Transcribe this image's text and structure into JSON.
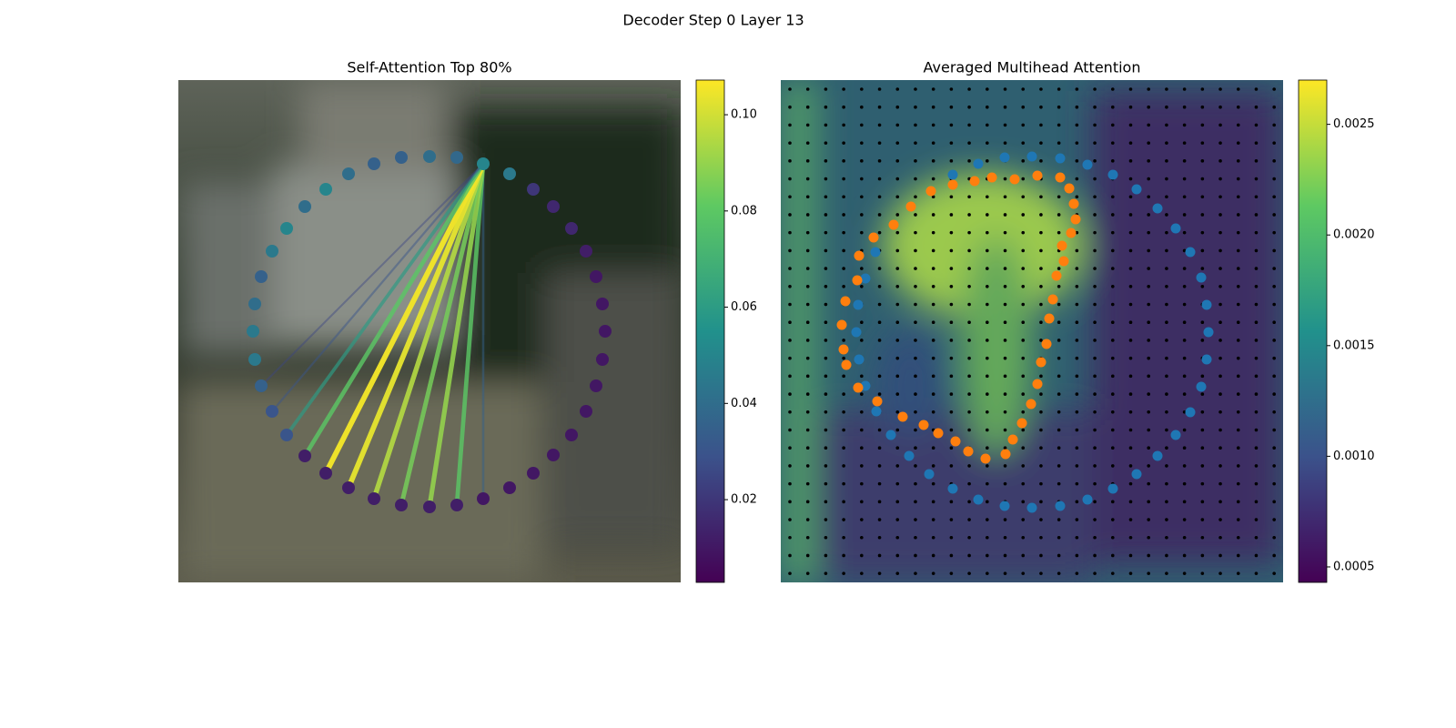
{
  "title": "Decoder Step 0 Layer 13",
  "chart_data": [
    {
      "type": "attention-ring",
      "title": "Self-Attention Top 80%",
      "xlim": [
        0,
        552
      ],
      "ylim": [
        552,
        0
      ],
      "x": [
        276,
        306,
        335,
        364,
        390,
        412,
        432,
        448,
        459,
        466,
        469,
        466,
        459,
        448,
        432,
        412,
        390,
        364,
        335,
        306,
        276,
        245,
        215,
        187,
        162,
        139,
        119,
        103,
        91,
        84,
        82,
        84,
        91,
        103,
        119,
        139,
        162,
        187,
        215,
        245
      ],
      "y": [
        84,
        85,
        92,
        103,
        120,
        139,
        163,
        188,
        216,
        246,
        276,
        307,
        336,
        364,
        390,
        412,
        432,
        448,
        460,
        467,
        469,
        467,
        460,
        448,
        432,
        413,
        390,
        364,
        336,
        307,
        276,
        246,
        216,
        188,
        163,
        139,
        120,
        103,
        92,
        85
      ],
      "values": [
        0.04,
        0.038,
        0.05,
        0.045,
        0.02,
        0.015,
        0.015,
        0.012,
        0.01,
        0.01,
        0.01,
        0.01,
        0.01,
        0.01,
        0.01,
        0.01,
        0.01,
        0.01,
        0.01,
        0.012,
        0.012,
        0.012,
        0.012,
        0.012,
        0.012,
        0.012,
        0.03,
        0.03,
        0.035,
        0.045,
        0.045,
        0.04,
        0.035,
        0.045,
        0.05,
        0.04,
        0.05,
        0.04,
        0.035,
        0.035
      ],
      "links": {
        "source": 2,
        "targets": [
          18,
          19,
          20,
          21,
          22,
          23,
          24,
          25,
          26,
          27,
          28
        ],
        "values": [
          0.035,
          0.08,
          0.09,
          0.085,
          0.095,
          0.103,
          0.105,
          0.08,
          0.06,
          0.03,
          0.025
        ]
      },
      "colorbar": {
        "ylim": [
          0.0028,
          0.1072
        ],
        "yticks": [
          0.02,
          0.04,
          0.06,
          0.08,
          {
            "value": 0.1,
            "label": "0.10"
          }
        ]
      }
    },
    {
      "type": "attention-map",
      "title": "Averaged Multihead Attention",
      "xlim": [
        0,
        552
      ],
      "ylim": [
        552,
        0
      ],
      "series": [
        {
          "color": "#1f77b4",
          "x": [
            104,
            93,
            85,
            83,
            86,
            93,
            105,
            121,
            141,
            163,
            189,
            217,
            246,
            276,
            307,
            337,
            365,
            391,
            414,
            434,
            450,
            462,
            468,
            470,
            468,
            462,
            450,
            434,
            414,
            391,
            365,
            337,
            307,
            276,
            246,
            217,
            189
          ],
          "y": [
            189,
            218,
            247,
            277,
            307,
            336,
            364,
            390,
            413,
            433,
            449,
            461,
            468,
            470,
            468,
            461,
            449,
            433,
            413,
            390,
            365,
            337,
            307,
            277,
            247,
            217,
            189,
            163,
            141,
            120,
            104,
            93,
            86,
            84,
            85,
            92,
            104
          ]
        },
        {
          "color": "#ff7f0e",
          "x": [
            165,
            189,
            213,
            232,
            257,
            282,
            307,
            317,
            322,
            324,
            319,
            309,
            311,
            303,
            299,
            295,
            292,
            286,
            282,
            275,
            265,
            255,
            247,
            225,
            206,
            192,
            173,
            157,
            134,
            106,
            85,
            72,
            69,
            67,
            71,
            84,
            86,
            102,
            124,
            143
          ],
          "y": [
            122,
            115,
            111,
            107,
            109,
            105,
            107,
            119,
            136,
            153,
            168,
            182,
            199,
            215,
            241,
            262,
            290,
            310,
            334,
            356,
            377,
            395,
            411,
            416,
            408,
            397,
            388,
            379,
            370,
            353,
            338,
            313,
            296,
            269,
            243,
            220,
            193,
            173,
            159,
            139
          ]
        }
      ],
      "colorbar": {
        "ylim": [
          0.00043,
          0.0027
        ],
        "yticks": [
          0.0005,
          {
            "value": 0.001,
            "label": "0.0010"
          },
          0.0015,
          {
            "value": 0.002,
            "label": "0.0020"
          },
          0.0025
        ]
      }
    }
  ]
}
